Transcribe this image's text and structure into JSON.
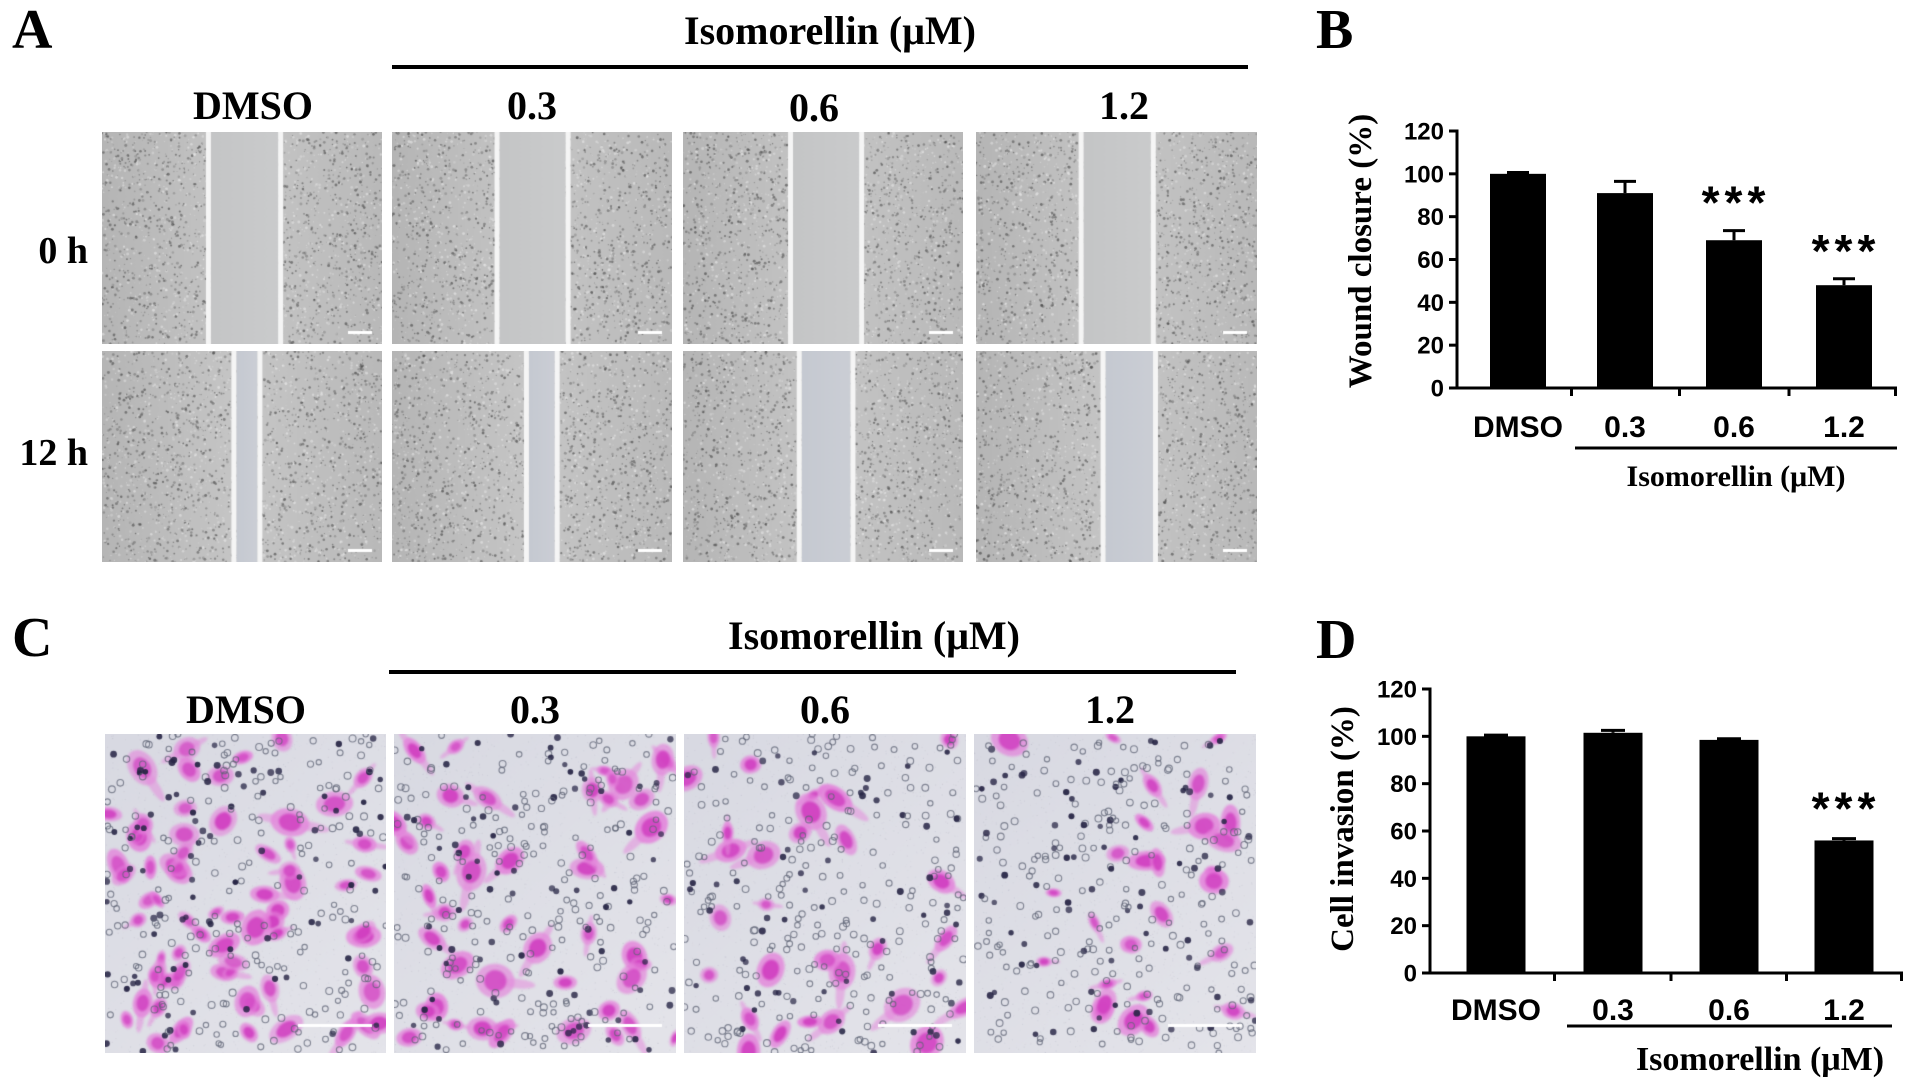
{
  "figure": {
    "panel_a": {
      "label": "A",
      "treatment_title": "Isomorellin (μM)",
      "columns": [
        "DMSO",
        "0.3",
        "0.6",
        "1.2"
      ],
      "rows": [
        "0 h",
        "12 h"
      ]
    },
    "panel_b": {
      "label": "B"
    },
    "panel_c": {
      "label": "C",
      "treatment_title": "Isomorellin (μM)",
      "columns": [
        "DMSO",
        "0.3",
        "0.6",
        "1.2"
      ]
    },
    "panel_d": {
      "label": "D"
    }
  },
  "colors": {
    "bars": "#000000",
    "stain": "#d64fc8",
    "wound_field": "#c2c2c2",
    "invasion_field": "#dcdde5",
    "scale_bar": "#ffffff"
  },
  "chart_data": [
    {
      "type": "bar",
      "categories": [
        "DMSO",
        "0.3",
        "0.6",
        "1.2"
      ],
      "values": [
        100,
        91,
        69,
        48
      ],
      "errors": [
        0.6,
        5.5,
        4.5,
        3
      ],
      "xlabel": "",
      "ylabel": "Wound closure (%)",
      "xgroup_label": "Isomorellin (μM)",
      "xgroup_from_index": 1,
      "xgroup_to_index": 3,
      "ylim": [
        0,
        120
      ],
      "yticks": [
        0,
        20,
        40,
        60,
        80,
        100,
        120
      ],
      "grid": false,
      "annotations": [
        {
          "category_index": 2,
          "text": "***"
        },
        {
          "category_index": 3,
          "text": "***"
        }
      ],
      "color": "#000000"
    },
    {
      "type": "bar",
      "categories": [
        "DMSO",
        "0.3",
        "0.6",
        "1.2"
      ],
      "values": [
        100,
        101.5,
        98.5,
        56
      ],
      "errors": [
        0.5,
        1,
        0.5,
        0.8
      ],
      "xlabel": "",
      "ylabel": "Cell invasion (%)",
      "xgroup_label": "Isomorellin (μM)",
      "xgroup_from_index": 1,
      "xgroup_to_index": 3,
      "ylim": [
        0,
        120
      ],
      "yticks": [
        0,
        20,
        40,
        60,
        80,
        100,
        120
      ],
      "grid": false,
      "annotations": [
        {
          "category_index": 3,
          "text": "***"
        }
      ],
      "color": "#000000"
    }
  ]
}
